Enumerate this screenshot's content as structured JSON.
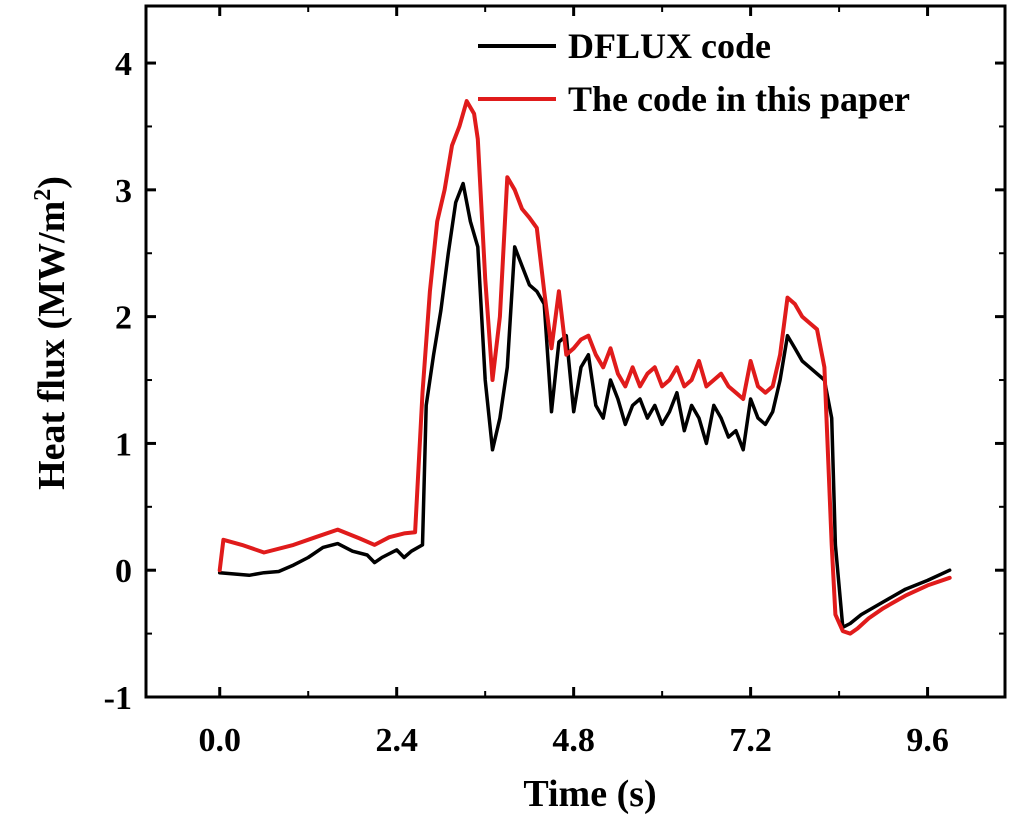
{
  "chart_data": {
    "type": "line",
    "title": "",
    "xlabel": "Time (s)",
    "ylabel_main": "Heat flux (MW/m",
    "ylabel_sup": "2",
    "ylabel_close": ")",
    "xlim": [
      -1.0,
      10.65
    ],
    "ylim": [
      -1,
      4.45
    ],
    "xticks": [
      0.0,
      2.4,
      4.8,
      7.2,
      9.6
    ],
    "xtick_labels": [
      "0.0",
      "2.4",
      "4.8",
      "7.2",
      "9.6"
    ],
    "yticks": [
      -1,
      0,
      1,
      2,
      3,
      4
    ],
    "ytick_labels": [
      "-1",
      "0",
      "1",
      "2",
      "3",
      "4"
    ],
    "legend_position": "top-right",
    "series": [
      {
        "name": "DFLUX code",
        "color": "#000000",
        "x": [
          0.0,
          0.2,
          0.4,
          0.6,
          0.8,
          1.0,
          1.2,
          1.4,
          1.6,
          1.8,
          2.0,
          2.1,
          2.2,
          2.4,
          2.5,
          2.6,
          2.75,
          2.8,
          2.9,
          3.0,
          3.1,
          3.2,
          3.3,
          3.4,
          3.5,
          3.6,
          3.7,
          3.8,
          3.9,
          4.0,
          4.1,
          4.2,
          4.3,
          4.4,
          4.5,
          4.6,
          4.7,
          4.8,
          4.9,
          5.0,
          5.1,
          5.2,
          5.3,
          5.4,
          5.5,
          5.6,
          5.7,
          5.8,
          5.9,
          6.0,
          6.1,
          6.2,
          6.3,
          6.4,
          6.5,
          6.6,
          6.7,
          6.8,
          6.9,
          7.0,
          7.1,
          7.2,
          7.3,
          7.4,
          7.5,
          7.6,
          7.7,
          7.8,
          7.9,
          8.0,
          8.1,
          8.2,
          8.3,
          8.35,
          8.45,
          8.55,
          8.7,
          9.0,
          9.3,
          9.6,
          9.9
        ],
        "y": [
          -0.02,
          -0.03,
          -0.04,
          -0.02,
          -0.01,
          0.04,
          0.1,
          0.18,
          0.21,
          0.15,
          0.12,
          0.06,
          0.1,
          0.16,
          0.1,
          0.15,
          0.2,
          1.3,
          1.7,
          2.05,
          2.5,
          2.9,
          3.05,
          2.75,
          2.55,
          1.5,
          0.95,
          1.2,
          1.6,
          2.55,
          2.4,
          2.25,
          2.2,
          2.1,
          1.25,
          1.8,
          1.85,
          1.25,
          1.6,
          1.7,
          1.3,
          1.2,
          1.5,
          1.35,
          1.15,
          1.3,
          1.35,
          1.2,
          1.3,
          1.15,
          1.25,
          1.4,
          1.1,
          1.3,
          1.2,
          1.0,
          1.3,
          1.2,
          1.05,
          1.1,
          0.95,
          1.35,
          1.2,
          1.15,
          1.25,
          1.5,
          1.85,
          1.75,
          1.65,
          1.6,
          1.55,
          1.5,
          1.2,
          0.2,
          -0.45,
          -0.42,
          -0.35,
          -0.25,
          -0.15,
          -0.08,
          0.0
        ]
      },
      {
        "name": "The code in this paper",
        "color": "#e01b1b",
        "x": [
          0.0,
          0.05,
          0.3,
          0.6,
          1.0,
          1.3,
          1.6,
          1.9,
          2.1,
          2.3,
          2.5,
          2.65,
          2.75,
          2.85,
          2.95,
          3.05,
          3.15,
          3.25,
          3.35,
          3.45,
          3.5,
          3.6,
          3.7,
          3.8,
          3.9,
          4.0,
          4.1,
          4.2,
          4.3,
          4.4,
          4.5,
          4.6,
          4.7,
          4.8,
          4.9,
          5.0,
          5.1,
          5.2,
          5.3,
          5.4,
          5.5,
          5.6,
          5.7,
          5.8,
          5.9,
          6.0,
          6.1,
          6.2,
          6.3,
          6.4,
          6.5,
          6.6,
          6.7,
          6.8,
          6.9,
          7.0,
          7.1,
          7.2,
          7.3,
          7.4,
          7.5,
          7.6,
          7.7,
          7.8,
          7.9,
          8.0,
          8.1,
          8.2,
          8.3,
          8.35,
          8.45,
          8.55,
          8.65,
          8.8,
          9.0,
          9.3,
          9.6,
          9.9
        ],
        "y": [
          0.0,
          0.24,
          0.2,
          0.14,
          0.2,
          0.26,
          0.32,
          0.25,
          0.2,
          0.26,
          0.29,
          0.3,
          1.4,
          2.2,
          2.75,
          3.0,
          3.35,
          3.5,
          3.7,
          3.6,
          3.4,
          2.3,
          1.5,
          2.0,
          3.1,
          3.0,
          2.85,
          2.78,
          2.7,
          2.2,
          1.75,
          2.2,
          1.7,
          1.75,
          1.82,
          1.85,
          1.7,
          1.6,
          1.75,
          1.55,
          1.45,
          1.6,
          1.45,
          1.55,
          1.6,
          1.45,
          1.5,
          1.6,
          1.45,
          1.5,
          1.65,
          1.45,
          1.5,
          1.55,
          1.45,
          1.4,
          1.35,
          1.65,
          1.45,
          1.4,
          1.45,
          1.7,
          2.15,
          2.1,
          2.0,
          1.95,
          1.9,
          1.6,
          0.2,
          -0.35,
          -0.48,
          -0.5,
          -0.46,
          -0.38,
          -0.3,
          -0.2,
          -0.12,
          -0.06
        ]
      }
    ]
  }
}
